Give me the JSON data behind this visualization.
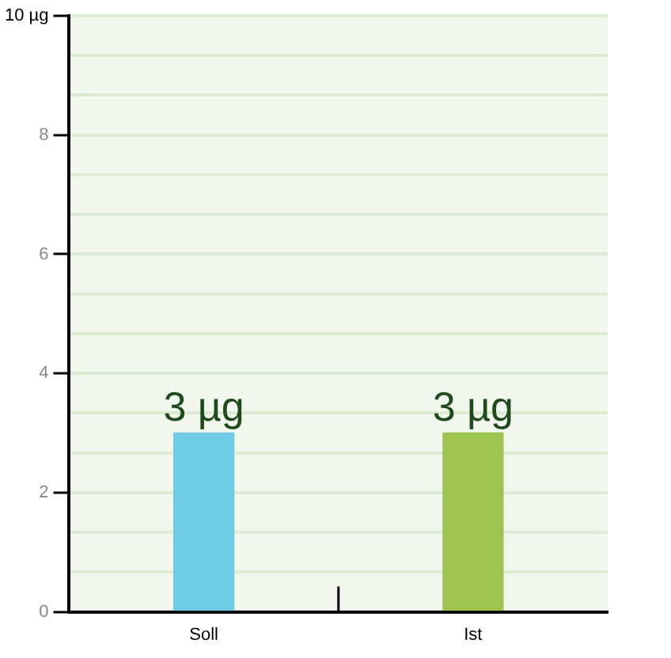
{
  "chart_data": {
    "type": "bar",
    "categories": [
      "Soll",
      "Ist"
    ],
    "values": [
      3,
      3
    ],
    "colors": [
      "#70cbe6",
      "#9cc44f"
    ],
    "value_labels": [
      "3 µg",
      "3 µg"
    ],
    "ylim": [
      0,
      10
    ],
    "yticks": [
      0,
      {
        "value": 0.667,
        "label": null
      },
      {
        "value": 1.333,
        "label": null
      },
      2,
      {
        "value": 2.667,
        "label": null
      },
      {
        "value": 3.333,
        "label": null
      },
      4,
      {
        "value": 4.667,
        "label": null
      },
      {
        "value": 5.333,
        "label": null
      },
      6,
      {
        "value": 6.667,
        "label": null
      },
      {
        "value": 7.333,
        "label": null
      },
      8,
      {
        "value": 8.667,
        "label": null
      },
      {
        "value": 9.333,
        "label": null
      },
      {
        "value": 10,
        "label": "10 µg"
      }
    ],
    "grid": "y",
    "legend": false
  }
}
